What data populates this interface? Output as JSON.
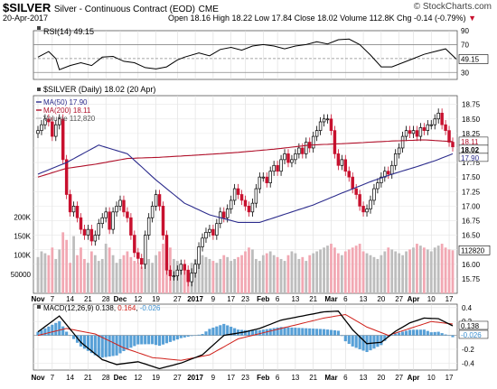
{
  "header": {
    "symbol": "$SILVER",
    "contract": "Silver - Continuous Contract (EOD)",
    "exchange": "CME",
    "watermark": "© StockCharts.com",
    "date": "20-Apr-2017",
    "quote_line": "Open 18.16 High 18.22 Low 17.84 Close 18.02 Volume 112.8K Chg -0.14 (-0.79%)",
    "chg_arrow": "▼"
  },
  "chart_data": [
    {
      "type": "line",
      "panel": "rsi",
      "title": "RSI(14) 49.15",
      "ylim": [
        20,
        90
      ],
      "y_ticks": [
        90,
        70,
        50,
        30
      ],
      "overbought": 70,
      "oversold": 30,
      "last_value_label": "49.15",
      "series": [
        {
          "name": "RSI(14)",
          "x": [
            0,
            3,
            5,
            6,
            9,
            12,
            15,
            18,
            21,
            24,
            27,
            30,
            33,
            36,
            39,
            41,
            45,
            48,
            51,
            54,
            57,
            60,
            63,
            66,
            69,
            72,
            75,
            78,
            81,
            84,
            87,
            90,
            93,
            96,
            99,
            102,
            105,
            108,
            111,
            114,
            117
          ],
          "values": [
            52,
            60,
            50,
            34,
            40,
            44,
            40,
            52,
            53,
            46,
            44,
            37,
            35,
            38,
            48,
            52,
            58,
            54,
            63,
            66,
            62,
            68,
            70,
            68,
            64,
            68,
            70,
            74,
            71,
            77,
            78,
            70,
            55,
            38,
            38,
            44,
            50,
            56,
            60,
            64,
            49.15
          ]
        }
      ]
    },
    {
      "type": "candlestick",
      "panel": "price",
      "title": "$SILVER (Daily) 18.02 (20 Apr)",
      "ylim": [
        15.5,
        18.9
      ],
      "y_ticks": [
        15.75,
        16.0,
        16.25,
        16.5,
        16.75,
        17.0,
        17.25,
        17.5,
        17.75,
        18.0,
        18.25,
        18.5,
        18.75
      ],
      "legend": [
        {
          "name": "MA(50) 17.90",
          "color": "#2b2b8c"
        },
        {
          "name": "MA(200) 18.11",
          "color": "#b0102a"
        },
        {
          "name": "Volume 112,820",
          "color": "#c8c8c8"
        }
      ],
      "last_labels": {
        "ma200": "18.11",
        "close": "18.02",
        "ma50": "17.90"
      },
      "close": [
        18.3,
        18.4,
        18.5,
        18.45,
        18.2,
        18.4,
        18.5,
        17.8,
        17.2,
        16.9,
        17.0,
        16.8,
        16.6,
        16.5,
        16.6,
        16.4,
        16.5,
        16.7,
        16.8,
        16.9,
        16.6,
        16.9,
        17.0,
        17.1,
        16.9,
        16.8,
        16.5,
        16.2,
        16.1,
        16.0,
        16.5,
        16.8,
        17.0,
        17.2,
        17.0,
        16.5,
        15.9,
        15.8,
        15.8,
        15.9,
        16.0,
        15.9,
        15.7,
        15.85,
        16.0,
        16.3,
        16.45,
        16.55,
        16.6,
        16.5,
        16.7,
        16.9,
        16.8,
        16.95,
        17.1,
        17.3,
        17.2,
        17.1,
        17.0,
        16.9,
        17.05,
        17.3,
        17.5,
        17.5,
        17.4,
        17.6,
        17.7,
        17.6,
        17.8,
        17.9,
        17.75,
        17.8,
        17.9,
        18.0,
        17.9,
        18.1,
        18.0,
        18.2,
        18.3,
        18.45,
        18.5,
        18.5,
        18.3,
        17.9,
        17.7,
        17.8,
        17.6,
        17.5,
        17.3,
        17.2,
        17.0,
        16.9,
        16.95,
        17.1,
        17.3,
        17.4,
        17.5,
        17.6,
        17.55,
        17.7,
        17.9,
        18.0,
        18.2,
        18.3,
        18.25,
        18.3,
        18.2,
        18.35,
        18.3,
        18.4,
        18.4,
        18.5,
        18.6,
        18.4,
        18.3,
        18.1,
        18.02
      ],
      "ma50": [
        [
          0,
          17.55
        ],
        [
          8,
          17.75
        ],
        [
          17,
          18.05
        ],
        [
          25,
          17.9
        ],
        [
          33,
          17.45
        ],
        [
          41,
          17.05
        ],
        [
          48,
          16.85
        ],
        [
          56,
          16.72
        ],
        [
          62,
          16.72
        ],
        [
          69,
          16.86
        ],
        [
          77,
          17.02
        ],
        [
          84,
          17.2
        ],
        [
          93,
          17.42
        ],
        [
          99,
          17.55
        ],
        [
          106,
          17.68
        ],
        [
          111,
          17.78
        ],
        [
          116,
          17.9
        ]
      ],
      "ma200": [
        [
          0,
          17.5
        ],
        [
          8,
          17.65
        ],
        [
          16,
          17.72
        ],
        [
          25,
          17.82
        ],
        [
          34,
          17.84
        ],
        [
          45,
          17.88
        ],
        [
          55,
          17.92
        ],
        [
          66,
          17.98
        ],
        [
          76,
          18.05
        ],
        [
          87,
          18.08
        ],
        [
          99,
          18.12
        ],
        [
          108,
          18.14
        ],
        [
          116,
          18.11
        ]
      ]
    },
    {
      "type": "bar",
      "panel": "volume",
      "y_ticks": [
        "200K",
        "150K",
        "100K",
        "50000"
      ],
      "ylim": [
        0,
        220000
      ],
      "last_value_label": "112820",
      "values": [
        95000,
        110000,
        105000,
        100000,
        120000,
        90000,
        115000,
        160000,
        140000,
        80000,
        150000,
        100000,
        120000,
        90000,
        80000,
        110000,
        100000,
        85000,
        90000,
        130000,
        120000,
        100000,
        80000,
        90000,
        100000,
        110000,
        95000,
        85000,
        80000,
        70000,
        120000,
        90000,
        80000,
        100000,
        110000,
        130000,
        150000,
        120000,
        90000,
        85000,
        75000,
        70000,
        60000,
        80000,
        90000,
        110000,
        100000,
        95000,
        90000,
        85000,
        80000,
        90000,
        100000,
        95000,
        85000,
        90000,
        95000,
        100000,
        110000,
        120000,
        115000,
        90000,
        85000,
        100000,
        105000,
        110000,
        100000,
        95000,
        90000,
        85000,
        100000,
        110000,
        105000,
        90000,
        95000,
        85000,
        100000,
        105000,
        110000,
        115000,
        120000,
        125000,
        130000,
        120000,
        105000,
        100000,
        110000,
        115000,
        120000,
        125000,
        130000,
        110000,
        105000,
        100000,
        95000,
        90000,
        100000,
        110000,
        120000,
        115000,
        110000,
        105000,
        100000,
        110000,
        115000,
        120000,
        130000,
        125000,
        120000,
        115000,
        110000,
        120000,
        125000,
        130000,
        120000,
        115000,
        112820
      ]
    },
    {
      "type": "line",
      "panel": "macd",
      "title": "MACD(12,26,9) 0.138, 0.164, -0.026",
      "title_parts": {
        "name": "MACD(12,26,9)",
        "macd": "0.138",
        "signal": "0.164",
        "hist": "-0.026"
      },
      "ylim": [
        -0.5,
        0.45
      ],
      "y_ticks": [
        "0.4",
        "0.2",
        "0.0",
        "-0.2",
        "-0.4"
      ],
      "last_labels": {
        "macd": "0.138",
        "hist": "-0.026"
      },
      "series": [
        {
          "name": "MACD",
          "color": "#000000",
          "x": [
            0,
            6,
            12,
            18,
            22,
            28,
            34,
            40,
            46,
            52,
            58,
            62,
            68,
            74,
            80,
            84,
            88,
            92,
            96,
            100,
            104,
            108,
            112,
            116
          ],
          "values": [
            0.05,
            0.28,
            -0.1,
            -0.35,
            -0.42,
            -0.38,
            -0.48,
            -0.4,
            -0.28,
            0.0,
            0.05,
            0.1,
            0.22,
            0.28,
            0.34,
            0.35,
            0.08,
            -0.12,
            -0.1,
            0.06,
            0.18,
            0.25,
            0.24,
            0.138
          ]
        },
        {
          "name": "Signal",
          "color": "#d0201a",
          "x": [
            0,
            8,
            16,
            24,
            32,
            40,
            48,
            56,
            64,
            72,
            80,
            86,
            92,
            98,
            104,
            110,
            116
          ],
          "values": [
            0.0,
            0.1,
            0.02,
            -0.18,
            -0.32,
            -0.36,
            -0.28,
            -0.05,
            0.05,
            0.15,
            0.25,
            0.3,
            0.12,
            0.0,
            0.1,
            0.2,
            0.164
          ]
        }
      ]
    }
  ],
  "x_axis": {
    "labels": [
      "Nov",
      "7",
      "14",
      "21",
      "28",
      "Dec",
      "12",
      "19",
      "27",
      "2017",
      "9",
      "17",
      "23",
      "Feb",
      "6",
      "13",
      "21",
      "Mar",
      "6",
      "13",
      "20",
      "27",
      "Apr",
      "10",
      "17"
    ],
    "bold_labels": [
      "Nov",
      "Dec",
      "2017",
      "Feb",
      "Mar",
      "Apr"
    ],
    "label_index": [
      0,
      4,
      9,
      14,
      19,
      23,
      28,
      33,
      39,
      44,
      49,
      54,
      58,
      63,
      67,
      72,
      77,
      82,
      86,
      91,
      96,
      101,
      105,
      110,
      115
    ]
  },
  "colors": {
    "up_candle": "#000000",
    "down_candle": "#c8102e",
    "ma50": "#2b2b8c",
    "ma200": "#b0102a",
    "volume_up": "#bdbdbd",
    "volume_down": "#f2a8b3",
    "macd": "#000000",
    "signal": "#d0201a",
    "hist": "#3a8fd0",
    "rsi": "#000000"
  }
}
